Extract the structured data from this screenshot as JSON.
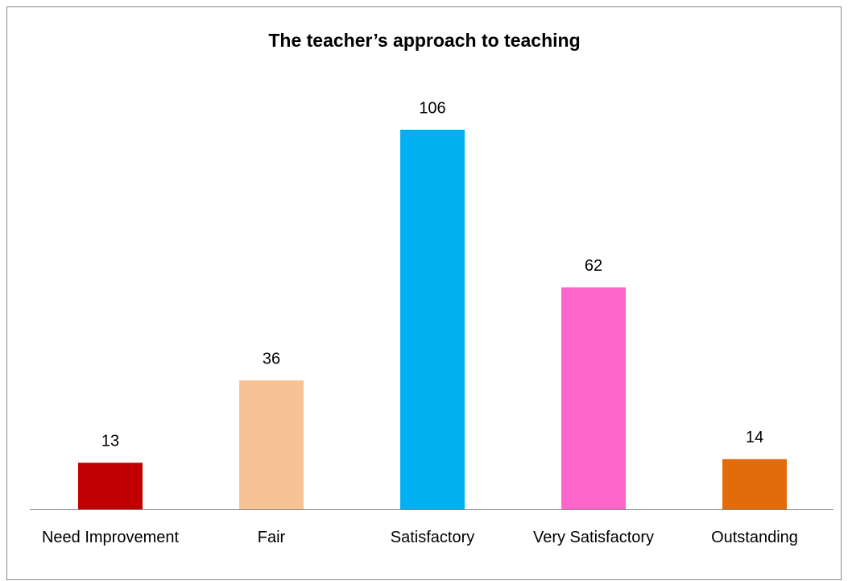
{
  "chart_data": {
    "type": "bar",
    "title": "The teacher’s approach to teaching",
    "categories": [
      "Need Improvement",
      "Fair",
      "Satisfactory",
      "Very Satisfactory",
      "Outstanding"
    ],
    "values": [
      13,
      36,
      106,
      62,
      14
    ],
    "colors": [
      "#c00000",
      "#f8c394",
      "#00b0f0",
      "#ff66cc",
      "#e36c0a"
    ]
  }
}
